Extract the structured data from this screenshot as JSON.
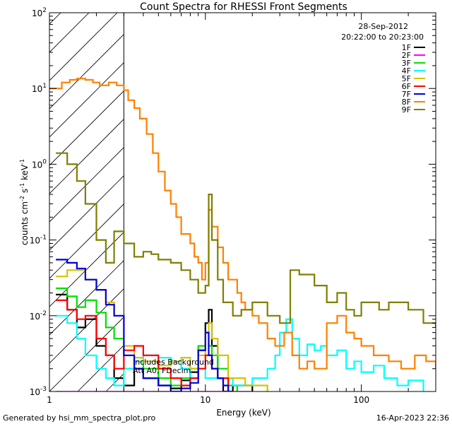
{
  "chart_data": {
    "type": "line",
    "title": "Count Spectra for RHESSI Front Segments",
    "xlabel": "Energy (keV)",
    "ylabel_parts": {
      "a": "counts cm",
      "b": "-2",
      "c": " s",
      "d": "-1",
      "e": " keV",
      "f": "-1"
    },
    "x_scale": "log",
    "y_scale": "log",
    "xlim": [
      1,
      300
    ],
    "ylim": [
      0.001,
      100
    ],
    "x_ticks": [
      {
        "v": 1,
        "label": "1"
      },
      {
        "v": 10,
        "label": "10"
      },
      {
        "v": 100,
        "label": "100"
      }
    ],
    "y_ticks": [
      {
        "v": 0.001,
        "base": "10",
        "exp": "-3"
      },
      {
        "v": 0.01,
        "base": "10",
        "exp": "-2"
      },
      {
        "v": 0.1,
        "base": "10",
        "exp": "-1"
      },
      {
        "v": 1,
        "base": "10",
        "exp": "0"
      },
      {
        "v": 10,
        "base": "10",
        "exp": "1"
      },
      {
        "v": 100,
        "base": "10",
        "exp": "2"
      }
    ],
    "date_label": "28-Sep-2012",
    "time_range_label": "20:22:00 to 20:23:00",
    "shaded_region_max_kev": 3,
    "annotations": [
      "Includes Background",
      "Att A0, FDecim"
    ],
    "footer_left": "Generated by hsi_mm_spectra_plot.pro",
    "footer_right": "16-Apr-2023 22:36",
    "series": [
      {
        "name": "1F",
        "color": "#000000",
        "points": [
          [
            1.1,
            0.019
          ],
          [
            1.3,
            0.012
          ],
          [
            1.5,
            0.007
          ],
          [
            1.7,
            0.009
          ],
          [
            2,
            0.004
          ],
          [
            2.3,
            0.003
          ],
          [
            2.6,
            0.0015
          ],
          [
            3,
            0.0012
          ],
          [
            3.5,
            0.002
          ],
          [
            4,
            0.0015
          ],
          [
            5,
            0.0012
          ],
          [
            6,
            0.0011
          ],
          [
            7,
            0.0014
          ],
          [
            8,
            0.0018
          ],
          [
            9,
            0.0035
          ],
          [
            10,
            0.008
          ],
          [
            10.5,
            0.012
          ],
          [
            11,
            0.004
          ],
          [
            12,
            0.0015
          ],
          [
            13,
            0.001
          ],
          [
            15,
            0.0012
          ],
          [
            20,
            0.001
          ]
        ]
      },
      {
        "name": "2F",
        "color": "#ff00ff",
        "points": [
          [
            1.1,
            0.001
          ],
          [
            2,
            0.001
          ],
          [
            3,
            0.001
          ],
          [
            5,
            0.001
          ],
          [
            10,
            0.001
          ],
          [
            20,
            0.001
          ]
        ]
      },
      {
        "name": "3F",
        "color": "#00e000",
        "points": [
          [
            1.1,
            0.023
          ],
          [
            1.3,
            0.018
          ],
          [
            1.5,
            0.013
          ],
          [
            1.7,
            0.016
          ],
          [
            2,
            0.011
          ],
          [
            2.3,
            0.007
          ],
          [
            2.6,
            0.005
          ],
          [
            3,
            0.002
          ],
          [
            3.5,
            0.0025
          ],
          [
            4,
            0.002
          ],
          [
            5,
            0.0015
          ],
          [
            6,
            0.0012
          ],
          [
            7,
            0.0015
          ],
          [
            8,
            0.002
          ],
          [
            9,
            0.004
          ],
          [
            10,
            0.006
          ],
          [
            10.5,
            0.004
          ],
          [
            11,
            0.003
          ],
          [
            12,
            0.002
          ],
          [
            14,
            0.0012
          ],
          [
            16,
            0.001
          ]
        ]
      },
      {
        "name": "4F",
        "color": "#00ffff",
        "points": [
          [
            1.1,
            0.01
          ],
          [
            1.3,
            0.008
          ],
          [
            1.5,
            0.005
          ],
          [
            1.7,
            0.003
          ],
          [
            2,
            0.002
          ],
          [
            2.3,
            0.0015
          ],
          [
            2.6,
            0.0012
          ],
          [
            3,
            0.002
          ],
          [
            3.5,
            0.0025
          ],
          [
            4,
            0.003
          ],
          [
            5,
            0.0028
          ],
          [
            6,
            0.0025
          ],
          [
            7,
            0.002
          ],
          [
            8,
            0.0015
          ],
          [
            9,
            0.002
          ],
          [
            10,
            0.0015
          ],
          [
            15,
            0.0012
          ],
          [
            20,
            0.0015
          ],
          [
            25,
            0.002
          ],
          [
            28,
            0.003
          ],
          [
            30,
            0.006
          ],
          [
            33,
            0.009
          ],
          [
            36,
            0.005
          ],
          [
            40,
            0.003
          ],
          [
            45,
            0.0042
          ],
          [
            50,
            0.0035
          ],
          [
            55,
            0.004
          ],
          [
            60,
            0.003
          ],
          [
            70,
            0.0035
          ],
          [
            80,
            0.002
          ],
          [
            90,
            0.0025
          ],
          [
            100,
            0.0018
          ],
          [
            120,
            0.0022
          ],
          [
            140,
            0.0015
          ],
          [
            170,
            0.0012
          ],
          [
            200,
            0.0014
          ],
          [
            250,
            0.001
          ]
        ]
      },
      {
        "name": "5F",
        "color": "#d4c400",
        "points": [
          [
            1.1,
            0.033
          ],
          [
            1.3,
            0.04
          ],
          [
            1.5,
            0.04
          ],
          [
            1.7,
            0.03
          ],
          [
            2,
            0.022
          ],
          [
            2.3,
            0.015
          ],
          [
            2.6,
            0.01
          ],
          [
            3,
            0.004
          ],
          [
            3.5,
            0.0028
          ],
          [
            4,
            0.0025
          ],
          [
            5,
            0.0022
          ],
          [
            6,
            0.0025
          ],
          [
            7,
            0.0028
          ],
          [
            8,
            0.002
          ],
          [
            9,
            0.003
          ],
          [
            10,
            0.006
          ],
          [
            10.5,
            0.008
          ],
          [
            11,
            0.005
          ],
          [
            12,
            0.003
          ],
          [
            14,
            0.0015
          ],
          [
            18,
            0.0012
          ],
          [
            25,
            0.001
          ]
        ]
      },
      {
        "name": "6F",
        "color": "#ff0000",
        "points": [
          [
            1.1,
            0.016
          ],
          [
            1.3,
            0.012
          ],
          [
            1.5,
            0.009
          ],
          [
            1.7,
            0.01
          ],
          [
            2,
            0.005
          ],
          [
            2.3,
            0.003
          ],
          [
            2.6,
            0.002
          ],
          [
            3,
            0.0035
          ],
          [
            3.5,
            0.004
          ],
          [
            4,
            0.003
          ],
          [
            5,
            0.002
          ],
          [
            6,
            0.0015
          ],
          [
            7,
            0.0012
          ],
          [
            8,
            0.0015
          ],
          [
            9,
            0.002
          ],
          [
            10,
            0.003
          ],
          [
            11,
            0.002
          ],
          [
            12,
            0.0015
          ],
          [
            14,
            0.001
          ]
        ]
      },
      {
        "name": "7F",
        "color": "#0000dd",
        "points": [
          [
            1.1,
            0.055
          ],
          [
            1.3,
            0.05
          ],
          [
            1.5,
            0.042
          ],
          [
            1.7,
            0.03
          ],
          [
            2,
            0.022
          ],
          [
            2.3,
            0.014
          ],
          [
            2.6,
            0.01
          ],
          [
            3,
            0.003
          ],
          [
            3.5,
            0.002
          ],
          [
            4,
            0.0015
          ],
          [
            5,
            0.0012
          ],
          [
            6,
            0.001
          ],
          [
            7,
            0.0011
          ],
          [
            8,
            0.0013
          ],
          [
            9,
            0.0035
          ],
          [
            10,
            0.006
          ],
          [
            10.5,
            0.003
          ],
          [
            11,
            0.002
          ],
          [
            12,
            0.0015
          ],
          [
            13,
            0.0012
          ],
          [
            14,
            0.001
          ]
        ]
      },
      {
        "name": "8F",
        "color": "#ff8000",
        "points": [
          [
            1,
            10
          ],
          [
            1.1,
            10
          ],
          [
            1.2,
            12
          ],
          [
            1.35,
            13
          ],
          [
            1.5,
            13.5
          ],
          [
            1.7,
            13
          ],
          [
            1.9,
            12
          ],
          [
            2.1,
            11
          ],
          [
            2.4,
            12
          ],
          [
            2.7,
            11
          ],
          [
            3,
            9.5
          ],
          [
            3.2,
            7
          ],
          [
            3.5,
            5.5
          ],
          [
            3.8,
            4
          ],
          [
            4.2,
            2.5
          ],
          [
            4.6,
            1.4
          ],
          [
            5,
            0.8
          ],
          [
            5.5,
            0.45
          ],
          [
            6,
            0.3
          ],
          [
            6.5,
            0.2
          ],
          [
            7,
            0.12
          ],
          [
            8,
            0.09
          ],
          [
            8.5,
            0.06
          ],
          [
            9,
            0.05
          ],
          [
            9.5,
            0.03
          ],
          [
            10,
            0.05
          ],
          [
            10.5,
            0.25
          ],
          [
            11,
            0.15
          ],
          [
            12,
            0.08
          ],
          [
            13,
            0.05
          ],
          [
            14,
            0.03
          ],
          [
            16,
            0.02
          ],
          [
            17,
            0.015
          ],
          [
            18,
            0.012
          ],
          [
            20,
            0.01
          ],
          [
            22,
            0.008
          ],
          [
            25,
            0.005
          ],
          [
            28,
            0.004
          ],
          [
            32,
            0.006
          ],
          [
            36,
            0.003
          ],
          [
            40,
            0.002
          ],
          [
            45,
            0.0025
          ],
          [
            50,
            0.002
          ],
          [
            60,
            0.008
          ],
          [
            70,
            0.01
          ],
          [
            80,
            0.006
          ],
          [
            90,
            0.005
          ],
          [
            100,
            0.004
          ],
          [
            120,
            0.003
          ],
          [
            150,
            0.0025
          ],
          [
            180,
            0.002
          ],
          [
            220,
            0.003
          ],
          [
            260,
            0.0025
          ],
          [
            300,
            0.002
          ]
        ]
      },
      {
        "name": "9F",
        "color": "#7f7f00",
        "points": [
          [
            1.1,
            1.4
          ],
          [
            1.3,
            1.0
          ],
          [
            1.5,
            0.6
          ],
          [
            1.7,
            0.3
          ],
          [
            2,
            0.1
          ],
          [
            2.3,
            0.05
          ],
          [
            2.6,
            0.13
          ],
          [
            3,
            0.09
          ],
          [
            3.5,
            0.06
          ],
          [
            4,
            0.07
          ],
          [
            4.5,
            0.065
          ],
          [
            5,
            0.055
          ],
          [
            6,
            0.05
          ],
          [
            7,
            0.04
          ],
          [
            8,
            0.03
          ],
          [
            9,
            0.02
          ],
          [
            10,
            0.025
          ],
          [
            10.5,
            0.4
          ],
          [
            11,
            0.1
          ],
          [
            12,
            0.03
          ],
          [
            13,
            0.015
          ],
          [
            15,
            0.01
          ],
          [
            17,
            0.012
          ],
          [
            20,
            0.015
          ],
          [
            25,
            0.01
          ],
          [
            30,
            0.008
          ],
          [
            35,
            0.04
          ],
          [
            40,
            0.035
          ],
          [
            50,
            0.025
          ],
          [
            60,
            0.015
          ],
          [
            70,
            0.02
          ],
          [
            80,
            0.012
          ],
          [
            90,
            0.01
          ],
          [
            100,
            0.015
          ],
          [
            130,
            0.012
          ],
          [
            150,
            0.015
          ],
          [
            200,
            0.012
          ],
          [
            250,
            0.008
          ],
          [
            300,
            0.007
          ]
        ]
      }
    ]
  }
}
